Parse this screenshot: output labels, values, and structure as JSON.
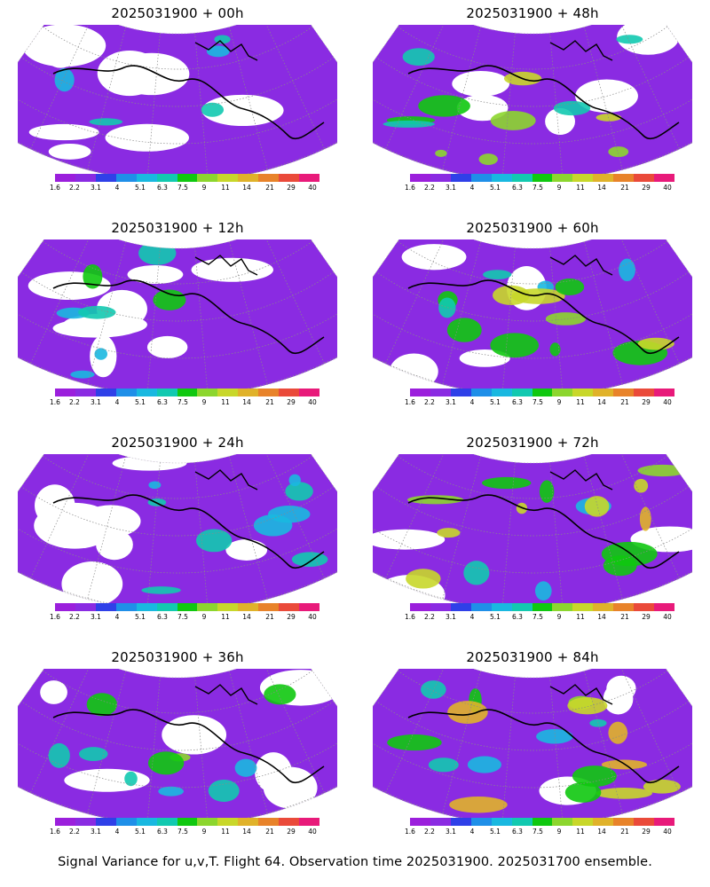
{
  "colorbar": {
    "colors": [
      "#9b1fdc",
      "#8a2be2",
      "#2f40e8",
      "#1f8fe8",
      "#19b8e0",
      "#12c9b0",
      "#10c810",
      "#8cd62e",
      "#c8d72a",
      "#e0b22a",
      "#e8832a",
      "#ea4a3a",
      "#e81a7a"
    ],
    "labels": [
      "1.6",
      "2.2",
      "3.1",
      "4",
      "5.1",
      "6.3",
      "7.5",
      "9",
      "11",
      "14",
      "21",
      "29",
      "40"
    ]
  },
  "panels": [
    {
      "title": "2025031900 + 00h",
      "intensity": 0.1
    },
    {
      "title": "2025031900 + 48h",
      "intensity": 0.6
    },
    {
      "title": "2025031900 + 12h",
      "intensity": 0.2
    },
    {
      "title": "2025031900 + 60h",
      "intensity": 0.7
    },
    {
      "title": "2025031900 + 24h",
      "intensity": 0.35
    },
    {
      "title": "2025031900 + 72h",
      "intensity": 0.8
    },
    {
      "title": "2025031900 + 36h",
      "intensity": 0.45
    },
    {
      "title": "2025031900 + 84h",
      "intensity": 0.9
    }
  ],
  "footer": "Signal Variance for u,v,T. Flight 64. Observation time 2025031900. 2025031700 ensemble."
}
